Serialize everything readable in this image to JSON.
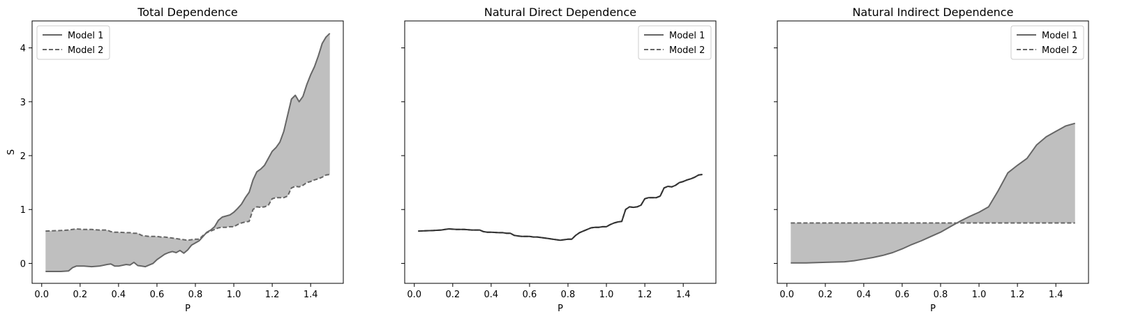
{
  "figure": {
    "shared_ylabel": "S",
    "x_ticks": [
      "0.0",
      "0.2",
      "0.4",
      "0.6",
      "0.8",
      "1.0",
      "1.2",
      "1.4"
    ],
    "y_ticks": [
      "0",
      "1",
      "2",
      "3",
      "4"
    ]
  },
  "colors": {
    "line": "#666666",
    "fill": "#bfbfbf",
    "overlap_line": "#333333"
  },
  "chart_data": [
    {
      "type": "line",
      "title": "Total Dependence",
      "xlabel": "P",
      "ylabel": "S",
      "xlim": [
        -0.05,
        1.57
      ],
      "ylim": [
        -0.37,
        4.5
      ],
      "grid": false,
      "legend": "top-left",
      "fill_between_series": true,
      "x": [
        0.02,
        0.1,
        0.14,
        0.16,
        0.18,
        0.22,
        0.26,
        0.3,
        0.34,
        0.36,
        0.38,
        0.4,
        0.44,
        0.46,
        0.48,
        0.5,
        0.52,
        0.54,
        0.56,
        0.58,
        0.6,
        0.62,
        0.64,
        0.66,
        0.68,
        0.7,
        0.72,
        0.74,
        0.76,
        0.78,
        0.8,
        0.82,
        0.84,
        0.86,
        0.88,
        0.9,
        0.92,
        0.94,
        0.96,
        0.98,
        1.0,
        1.02,
        1.04,
        1.06,
        1.08,
        1.1,
        1.12,
        1.14,
        1.16,
        1.18,
        1.2,
        1.22,
        1.24,
        1.26,
        1.28,
        1.3,
        1.32,
        1.34,
        1.36,
        1.38,
        1.4,
        1.42,
        1.44,
        1.46,
        1.48,
        1.5
      ],
      "series": [
        {
          "name": "Model 1",
          "style": "solid",
          "values": [
            -0.15,
            -0.15,
            -0.14,
            -0.08,
            -0.05,
            -0.05,
            -0.06,
            -0.05,
            -0.02,
            -0.01,
            -0.05,
            -0.05,
            -0.02,
            -0.03,
            0.02,
            -0.04,
            -0.05,
            -0.06,
            -0.03,
            0.0,
            0.07,
            0.12,
            0.17,
            0.2,
            0.22,
            0.2,
            0.24,
            0.19,
            0.25,
            0.34,
            0.38,
            0.42,
            0.5,
            0.58,
            0.62,
            0.68,
            0.8,
            0.86,
            0.88,
            0.9,
            0.95,
            1.02,
            1.1,
            1.22,
            1.32,
            1.55,
            1.7,
            1.75,
            1.82,
            1.95,
            2.08,
            2.15,
            2.25,
            2.45,
            2.75,
            3.05,
            3.12,
            3.0,
            3.1,
            3.32,
            3.5,
            3.65,
            3.85,
            4.08,
            4.2,
            4.27
          ]
        },
        {
          "name": "Model 2",
          "style": "dashed",
          "values": [
            0.6,
            0.61,
            0.62,
            0.63,
            0.64,
            0.63,
            0.63,
            0.62,
            0.62,
            0.59,
            0.58,
            0.58,
            0.57,
            0.57,
            0.56,
            0.56,
            0.52,
            0.51,
            0.5,
            0.5,
            0.5,
            0.49,
            0.49,
            0.48,
            0.47,
            0.46,
            0.45,
            0.44,
            0.43,
            0.44,
            0.45,
            0.45,
            0.52,
            0.57,
            0.6,
            0.63,
            0.66,
            0.67,
            0.67,
            0.68,
            0.68,
            0.72,
            0.75,
            0.77,
            0.78,
            1.0,
            1.05,
            1.04,
            1.05,
            1.08,
            1.2,
            1.22,
            1.22,
            1.22,
            1.25,
            1.4,
            1.43,
            1.42,
            1.45,
            1.5,
            1.52,
            1.55,
            1.57,
            1.6,
            1.64,
            1.65
          ]
        }
      ]
    },
    {
      "type": "line",
      "title": "Natural Direct Dependence",
      "xlabel": "P",
      "ylabel": "",
      "xlim": [
        -0.05,
        1.57
      ],
      "ylim": [
        -0.37,
        4.5
      ],
      "grid": false,
      "legend": "top-right",
      "fill_between_series": true,
      "x": [
        0.02,
        0.1,
        0.14,
        0.16,
        0.18,
        0.22,
        0.26,
        0.3,
        0.34,
        0.36,
        0.38,
        0.4,
        0.44,
        0.46,
        0.48,
        0.5,
        0.52,
        0.54,
        0.56,
        0.58,
        0.6,
        0.62,
        0.64,
        0.66,
        0.68,
        0.7,
        0.72,
        0.74,
        0.76,
        0.78,
        0.8,
        0.82,
        0.84,
        0.86,
        0.88,
        0.9,
        0.92,
        0.94,
        0.96,
        0.98,
        1.0,
        1.02,
        1.04,
        1.06,
        1.08,
        1.1,
        1.12,
        1.14,
        1.16,
        1.18,
        1.2,
        1.22,
        1.24,
        1.26,
        1.28,
        1.3,
        1.32,
        1.34,
        1.36,
        1.38,
        1.4,
        1.42,
        1.44,
        1.46,
        1.48,
        1.5
      ],
      "series": [
        {
          "name": "Model 1",
          "style": "solid",
          "values": [
            0.6,
            0.61,
            0.62,
            0.63,
            0.64,
            0.63,
            0.63,
            0.62,
            0.62,
            0.59,
            0.58,
            0.58,
            0.57,
            0.57,
            0.56,
            0.56,
            0.52,
            0.51,
            0.5,
            0.5,
            0.5,
            0.49,
            0.49,
            0.48,
            0.47,
            0.46,
            0.45,
            0.44,
            0.43,
            0.44,
            0.45,
            0.45,
            0.52,
            0.57,
            0.6,
            0.63,
            0.66,
            0.67,
            0.67,
            0.68,
            0.68,
            0.72,
            0.75,
            0.77,
            0.78,
            1.0,
            1.05,
            1.04,
            1.05,
            1.08,
            1.2,
            1.22,
            1.22,
            1.22,
            1.25,
            1.4,
            1.43,
            1.42,
            1.45,
            1.5,
            1.52,
            1.55,
            1.57,
            1.6,
            1.64,
            1.65
          ]
        },
        {
          "name": "Model 2",
          "style": "dashed",
          "values": [
            0.6,
            0.61,
            0.62,
            0.63,
            0.64,
            0.63,
            0.63,
            0.62,
            0.62,
            0.59,
            0.58,
            0.58,
            0.57,
            0.57,
            0.56,
            0.56,
            0.52,
            0.51,
            0.5,
            0.5,
            0.5,
            0.49,
            0.49,
            0.48,
            0.47,
            0.46,
            0.45,
            0.44,
            0.43,
            0.44,
            0.45,
            0.45,
            0.52,
            0.57,
            0.6,
            0.63,
            0.66,
            0.67,
            0.67,
            0.68,
            0.68,
            0.72,
            0.75,
            0.77,
            0.78,
            1.0,
            1.05,
            1.04,
            1.05,
            1.08,
            1.2,
            1.22,
            1.22,
            1.22,
            1.25,
            1.4,
            1.43,
            1.42,
            1.45,
            1.5,
            1.52,
            1.55,
            1.57,
            1.6,
            1.64,
            1.65
          ]
        }
      ]
    },
    {
      "type": "line",
      "title": "Natural Indirect Dependence",
      "xlabel": "P",
      "ylabel": "",
      "xlim": [
        -0.05,
        1.57
      ],
      "ylim": [
        -0.37,
        4.5
      ],
      "grid": false,
      "legend": "top-right",
      "fill_between_series": true,
      "x": [
        0.02,
        0.1,
        0.2,
        0.3,
        0.35,
        0.4,
        0.45,
        0.5,
        0.55,
        0.6,
        0.65,
        0.7,
        0.75,
        0.8,
        0.85,
        0.9,
        0.95,
        1.0,
        1.05,
        1.1,
        1.15,
        1.2,
        1.25,
        1.3,
        1.35,
        1.4,
        1.45,
        1.5
      ],
      "series": [
        {
          "name": "Model 1",
          "style": "solid",
          "values": [
            0.01,
            0.01,
            0.02,
            0.03,
            0.05,
            0.08,
            0.11,
            0.15,
            0.2,
            0.27,
            0.35,
            0.42,
            0.5,
            0.58,
            0.68,
            0.78,
            0.87,
            0.95,
            1.05,
            1.35,
            1.68,
            1.82,
            1.95,
            2.2,
            2.35,
            2.45,
            2.55,
            2.6
          ]
        },
        {
          "name": "Model 2",
          "style": "dashed",
          "values": [
            0.75,
            0.75,
            0.75,
            0.75,
            0.75,
            0.75,
            0.75,
            0.75,
            0.75,
            0.75,
            0.75,
            0.75,
            0.75,
            0.75,
            0.75,
            0.75,
            0.75,
            0.75,
            0.75,
            0.75,
            0.75,
            0.75,
            0.75,
            0.75,
            0.75,
            0.75,
            0.75,
            0.75
          ]
        }
      ]
    }
  ]
}
